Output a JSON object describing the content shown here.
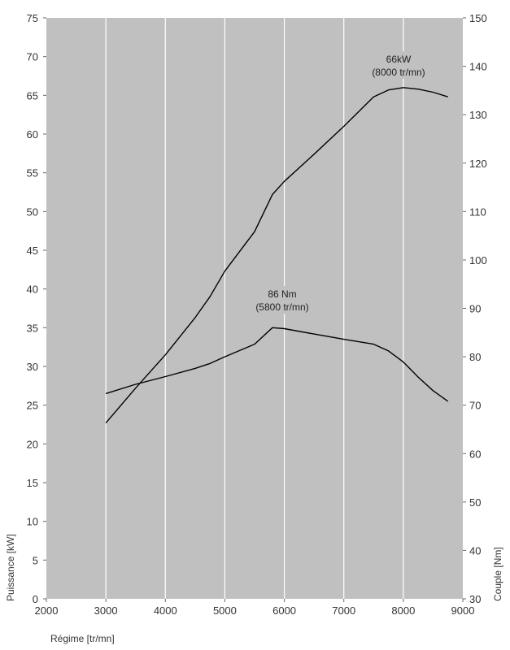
{
  "chart_data": {
    "type": "line",
    "xlabel": "Régime [tr/mn]",
    "ylabel_left": "Puissance [kW]",
    "ylabel_right": "Couple [Nm]",
    "xlim": [
      2000,
      9000
    ],
    "ylim_left": [
      0,
      75
    ],
    "ylim_right": [
      30,
      150
    ],
    "x_ticks": [
      "2000",
      "3000",
      "4000",
      "5000",
      "6000",
      "7000",
      "8000",
      "9000"
    ],
    "y_left_ticks": [
      "0",
      "5",
      "10",
      "15",
      "20",
      "25",
      "30",
      "35",
      "40",
      "45",
      "50",
      "55",
      "60",
      "65",
      "70",
      "75"
    ],
    "y_right_ticks": [
      "30",
      "40",
      "50",
      "60",
      "70",
      "80",
      "90",
      "100",
      "110",
      "120",
      "130",
      "140",
      "150"
    ],
    "grid": "vertical",
    "legend": "none",
    "colors": {
      "plot_bg": "#c0c0c0",
      "line": "#000000",
      "grid": "#ffffff"
    },
    "series": [
      {
        "axis": "left",
        "x": [
          3000,
          3500,
          4000,
          4500,
          4750,
          5000,
          5500,
          5800,
          6000,
          6500,
          7000,
          7500,
          7750,
          8000,
          8250,
          8500,
          8750
        ],
        "values": [
          22.7,
          27.2,
          31.5,
          36.3,
          39.0,
          42.3,
          47.4,
          52.2,
          53.9,
          57.4,
          61.0,
          64.8,
          65.7,
          66.0,
          65.8,
          65.4,
          64.8
        ]
      },
      {
        "axis": "right",
        "x": [
          3000,
          3500,
          4000,
          4500,
          4750,
          5000,
          5500,
          5800,
          6000,
          6500,
          7000,
          7500,
          7750,
          8000,
          8250,
          8500,
          8750
        ],
        "values": [
          72.4,
          74.3,
          75.9,
          77.6,
          78.6,
          80.0,
          82.6,
          86.0,
          85.8,
          84.7,
          83.6,
          82.6,
          81.2,
          78.9,
          75.8,
          73.0,
          70.8
        ]
      }
    ],
    "annotations": [
      {
        "line1": "66kW",
        "line2": "(8000 tr/mn)"
      },
      {
        "line1": "86 Nm",
        "line2": "(5800 tr/mn)"
      }
    ]
  }
}
